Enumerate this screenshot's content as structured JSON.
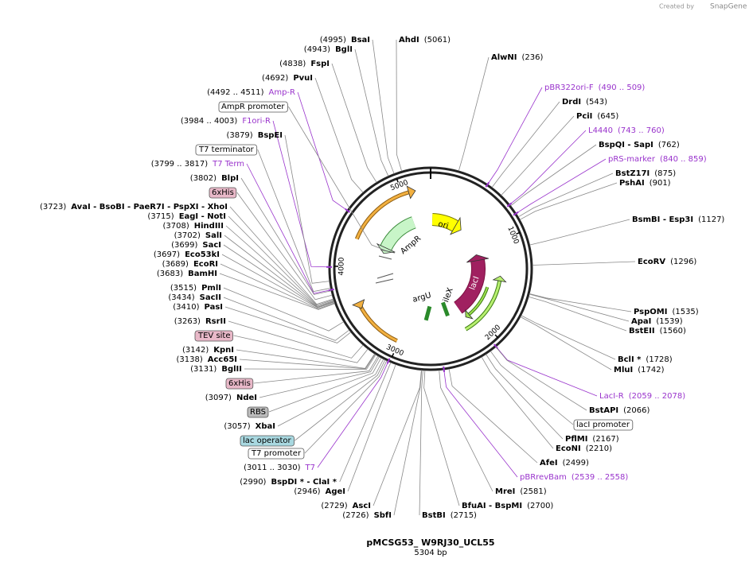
{
  "header": {
    "credit": "Created by",
    "brand": "SnapGene"
  },
  "map": {
    "name": "pMCSG53_ W9RJ30_UCL55",
    "length": "5304 bp",
    "ring_ticks": [
      "1000",
      "2000",
      "3000",
      "4000",
      "5000"
    ],
    "features": [
      "ori",
      "AmpR",
      "lacI",
      "argU",
      "ileX"
    ],
    "labels": [
      {
        "position": "(4995)",
        "name": "BsaI"
      },
      {
        "position": "(4943)",
        "name": "BglI"
      },
      {
        "position": "(4838)",
        "name": "FspI"
      },
      {
        "position": "(4692)",
        "name": "PvuI"
      },
      {
        "range": "(4492 .. 4511)",
        "name": "Amp-R"
      },
      {
        "name": "AmpR promoter"
      },
      {
        "range": "(3984 .. 4003)",
        "name": "F1ori-R"
      },
      {
        "position": "(3879)",
        "name": "BspEI"
      },
      {
        "name": "T7 terminator"
      },
      {
        "range": "(3799 .. 3817)",
        "name": "T7 Term"
      },
      {
        "position": "(3802)",
        "name": "BlpI"
      },
      {
        "name": "6xHis"
      },
      {
        "position": "(3723)",
        "name": "AvaI   - BsoBI   - PaeR7I   - PspXI   - XhoI"
      },
      {
        "position": "(3715)",
        "name": "EagI   - NotI"
      },
      {
        "position": "(3708)",
        "name": "HindIII"
      },
      {
        "position": "(3702)",
        "name": "SalI"
      },
      {
        "position": "(3699)",
        "name": "SacI"
      },
      {
        "position": "(3697)",
        "name": "Eco53kI"
      },
      {
        "position": "(3689)",
        "name": "EcoRI"
      },
      {
        "position": "(3683)",
        "name": "BamHI"
      },
      {
        "position": "(3515)",
        "name": "PmlI"
      },
      {
        "position": "(3434)",
        "name": "SacII"
      },
      {
        "position": "(3410)",
        "name": "PasI"
      },
      {
        "position": "(3263)",
        "name": "RsrII"
      },
      {
        "name": "TEV site"
      },
      {
        "position": "(3142)",
        "name": "KpnI"
      },
      {
        "position": "(3138)",
        "name": "Acc65I"
      },
      {
        "position": "(3131)",
        "name": "BglII"
      },
      {
        "name": "6xHis"
      },
      {
        "position": "(3097)",
        "name": "NdeI"
      },
      {
        "name": "RBS"
      },
      {
        "position": "(3057)",
        "name": "XbaI"
      },
      {
        "name": "lac operator"
      },
      {
        "name": "T7 promoter"
      },
      {
        "range": "(3011 .. 3030)",
        "name": "T7"
      },
      {
        "position": "(2990)",
        "name": "BspDI *  - ClaI *"
      },
      {
        "position": "(2946)",
        "name": "AgeI"
      },
      {
        "position": "(2729)",
        "name": "AscI"
      },
      {
        "position": "(2726)",
        "name": "SbfI"
      },
      {
        "position": "(2715)",
        "name": "BstBI"
      },
      {
        "position": "(5061)",
        "name": "AhdI"
      },
      {
        "position": "(236)",
        "name": "AlwNI"
      },
      {
        "range": "(490 .. 509)",
        "name": "pBR322ori-F"
      },
      {
        "position": "(543)",
        "name": "DrdI"
      },
      {
        "position": "(645)",
        "name": "PciI"
      },
      {
        "range": "(743 .. 760)",
        "name": "L4440"
      },
      {
        "position": "(762)",
        "name": "BspQI   - SapI"
      },
      {
        "range": "(840 .. 859)",
        "name": "pRS-marker"
      },
      {
        "position": "(875)",
        "name": "BstZ17I"
      },
      {
        "position": "(901)",
        "name": "PshAI"
      },
      {
        "position": "(1127)",
        "name": "BsmBI   - Esp3I"
      },
      {
        "position": "(1296)",
        "name": "EcoRV"
      },
      {
        "position": "(1535)",
        "name": "PspOMI"
      },
      {
        "position": "(1539)",
        "name": "ApaI"
      },
      {
        "position": "(1560)",
        "name": "BstEII"
      },
      {
        "position": "(1728)",
        "name": "BclI *"
      },
      {
        "position": "(1742)",
        "name": "MluI"
      },
      {
        "range": "(2059 .. 2078)",
        "name": "LacI-R"
      },
      {
        "position": "(2066)",
        "name": "BstAPI"
      },
      {
        "name": "lacI promoter"
      },
      {
        "position": "(2167)",
        "name": "PflMI"
      },
      {
        "position": "(2210)",
        "name": "EcoNI"
      },
      {
        "position": "(2499)",
        "name": "AfeI"
      },
      {
        "range": "(2539 .. 2558)",
        "name": "pBRrevBam"
      },
      {
        "position": "(2581)",
        "name": "MreI"
      },
      {
        "position": "(2700)",
        "name": "BfuAI   - BspMI"
      }
    ]
  }
}
